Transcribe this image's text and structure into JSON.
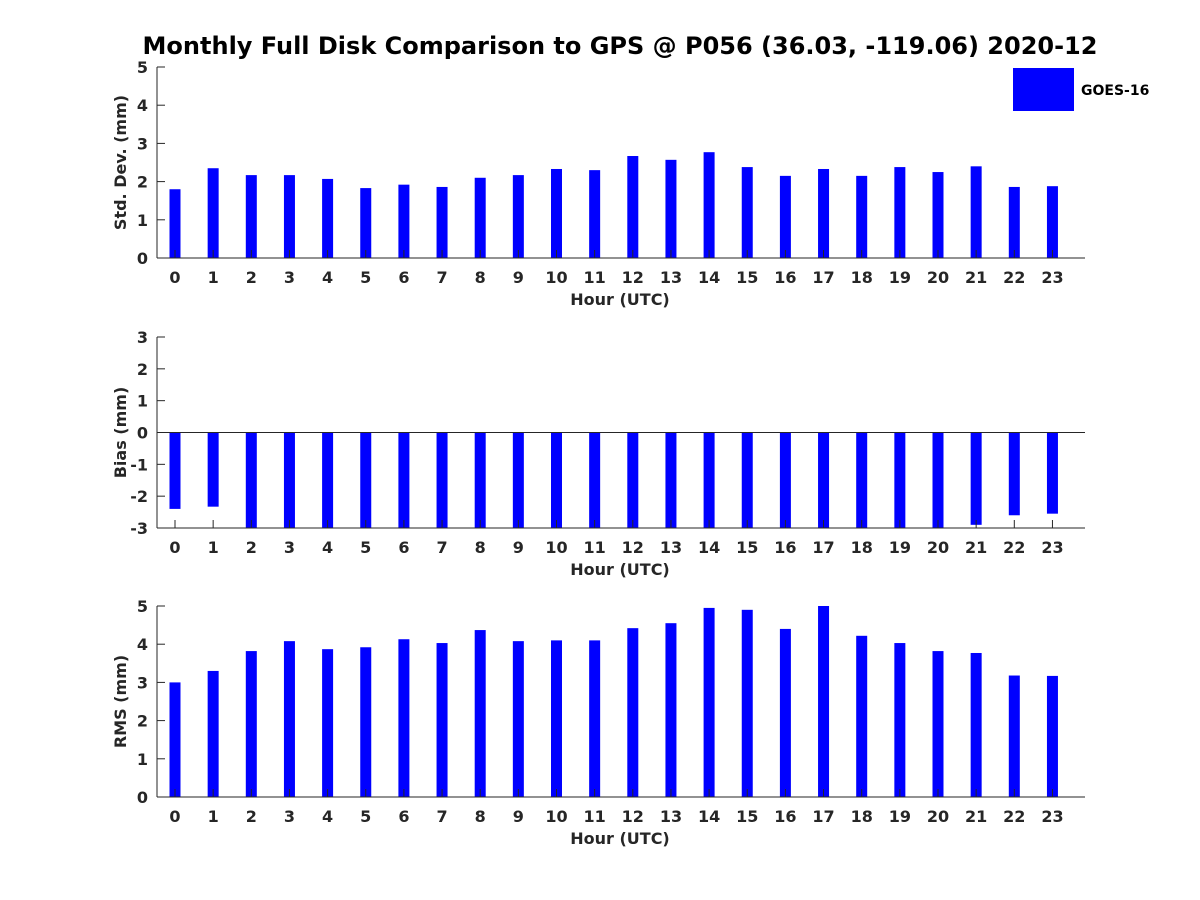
{
  "chart_data": {
    "title": "Monthly Full Disk Comparison to GPS @ P056 (36.03, -119.06) 2020-12",
    "legend": {
      "entries": [
        "GOES-16"
      ],
      "placement": "top-right",
      "color": "#0000ff"
    },
    "bar_color": "#0000ff",
    "charts": [
      {
        "id": "stddev",
        "type": "bar",
        "xlabel": "Hour (UTC)",
        "ylabel": "Std. Dev. (mm)",
        "ylim": [
          0,
          5
        ],
        "yticks": [
          "0",
          "1",
          "2",
          "3",
          "4",
          "5"
        ],
        "categories": [
          "0",
          "1",
          "2",
          "3",
          "4",
          "5",
          "6",
          "7",
          "8",
          "9",
          "10",
          "11",
          "12",
          "13",
          "14",
          "15",
          "16",
          "17",
          "18",
          "19",
          "20",
          "21",
          "22",
          "23"
        ],
        "series": [
          {
            "name": "GOES-16",
            "values": [
              1.8,
              2.35,
              2.17,
              2.17,
              2.07,
              1.83,
              1.92,
              1.86,
              2.1,
              2.17,
              2.33,
              2.3,
              2.67,
              2.57,
              2.77,
              2.38,
              2.15,
              2.33,
              2.15,
              2.38,
              2.25,
              2.4,
              1.86,
              1.88
            ]
          }
        ]
      },
      {
        "id": "bias",
        "type": "bar",
        "xlabel": "Hour (UTC)",
        "ylabel": "Bias (mm)",
        "ylim": [
          -3,
          3
        ],
        "yticks": [
          "-3",
          "-2",
          "-1",
          "0",
          "1",
          "2",
          "3"
        ],
        "categories": [
          "0",
          "1",
          "2",
          "3",
          "4",
          "5",
          "6",
          "7",
          "8",
          "9",
          "10",
          "11",
          "12",
          "13",
          "14",
          "15",
          "16",
          "17",
          "18",
          "19",
          "20",
          "21",
          "22",
          "23"
        ],
        "series": [
          {
            "name": "GOES-16",
            "values": [
              -2.4,
              -2.33,
              -3.0,
              -3.0,
              -3.0,
              -3.0,
              -3.0,
              -3.0,
              -3.0,
              -3.0,
              -3.0,
              -3.0,
              -3.0,
              -3.0,
              -3.0,
              -3.0,
              -3.0,
              -3.0,
              -3.0,
              -3.0,
              -3.0,
              -2.9,
              -2.6,
              -2.55
            ]
          }
        ]
      },
      {
        "id": "rms",
        "type": "bar",
        "xlabel": "Hour (UTC)",
        "ylabel": "RMS (mm)",
        "ylim": [
          0,
          5
        ],
        "yticks": [
          "0",
          "1",
          "2",
          "3",
          "4",
          "5"
        ],
        "categories": [
          "0",
          "1",
          "2",
          "3",
          "4",
          "5",
          "6",
          "7",
          "8",
          "9",
          "10",
          "11",
          "12",
          "13",
          "14",
          "15",
          "16",
          "17",
          "18",
          "19",
          "20",
          "21",
          "22",
          "23"
        ],
        "series": [
          {
            "name": "GOES-16",
            "values": [
              3.0,
              3.3,
              3.82,
              4.08,
              3.87,
              3.92,
              4.13,
              4.03,
              4.37,
              4.08,
              4.1,
              4.1,
              4.42,
              4.55,
              4.95,
              4.9,
              4.4,
              5.0,
              4.22,
              4.03,
              3.82,
              3.77,
              3.18,
              3.17
            ]
          }
        ]
      }
    ]
  }
}
